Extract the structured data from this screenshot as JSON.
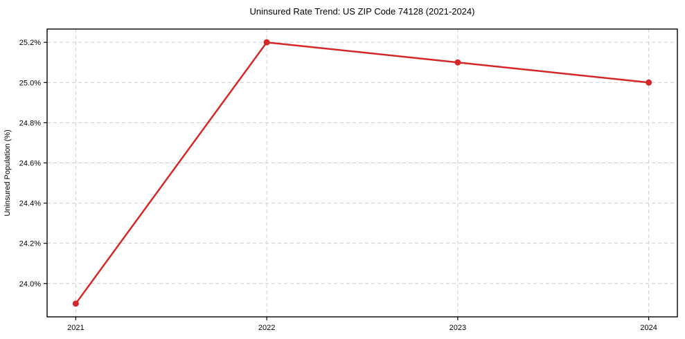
{
  "title": "Uninsured Rate Trend: US ZIP Code 74128 (2021-2024)",
  "colors": {
    "line": "#d62728",
    "marker": "#d62728",
    "grid": "#cccccc",
    "spine": "#000000",
    "text": "#000000",
    "background": "#ffffff"
  },
  "chart_data": {
    "type": "line",
    "title": "Uninsured Rate Trend: US ZIP Code 74128 (2021-2024)",
    "xlabel": "",
    "ylabel": "Uninsured Population (%)",
    "x": [
      2021,
      2022,
      2023,
      2024
    ],
    "values": [
      23.9,
      25.2,
      25.1,
      25.0
    ],
    "xticks": [
      2021,
      2022,
      2023,
      2024
    ],
    "xtick_labels": [
      "2021",
      "2022",
      "2023",
      "2024"
    ],
    "yticks": [
      24.0,
      24.2,
      24.4,
      24.6,
      24.8,
      25.0,
      25.2
    ],
    "ytick_labels": [
      "24.0%",
      "24.2%",
      "24.4%",
      "24.6%",
      "24.8%",
      "25.0%",
      "25.2%"
    ],
    "xlim": [
      2020.85,
      2024.15
    ],
    "ylim": [
      23.834,
      25.266
    ],
    "grid": true,
    "grid_style": "dashed",
    "legend": false,
    "marker": "circle",
    "line_width": 2.5,
    "marker_radius": 4.5
  }
}
